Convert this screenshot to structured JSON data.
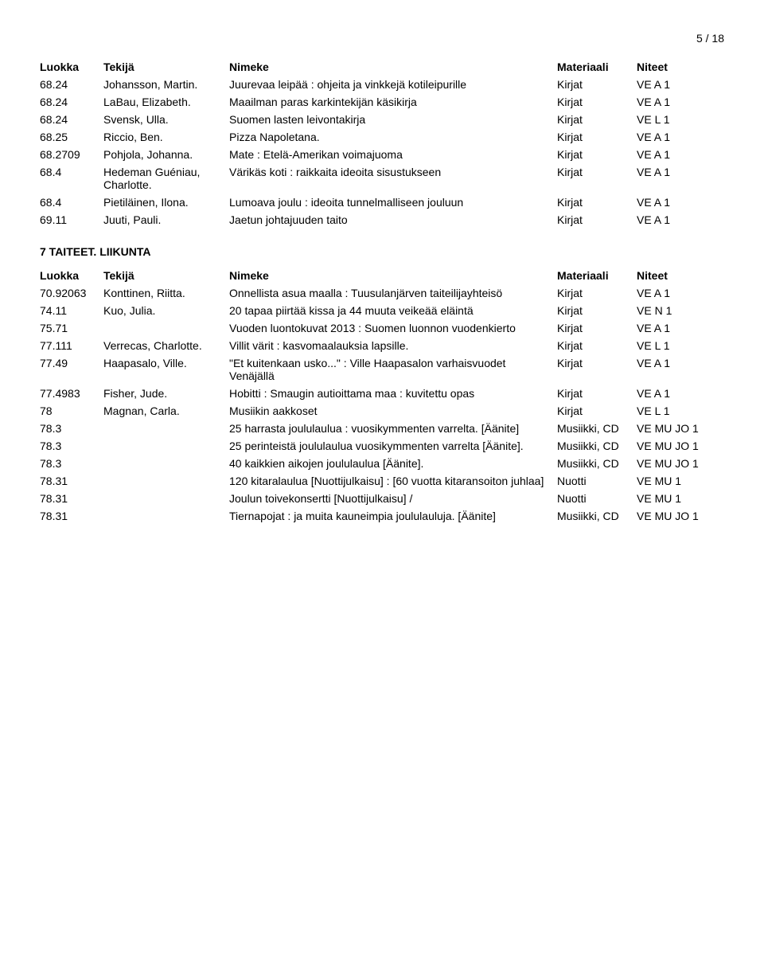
{
  "page_number": "5 / 18",
  "headers": {
    "luokka": "Luokka",
    "tekija": "Tekijä",
    "nimeke": "Nimeke",
    "materiaali": "Materiaali",
    "niteet": "Niteet"
  },
  "section1_rows": [
    {
      "luokka": "68.24",
      "tekija": "Johansson, Martin.",
      "nimeke": "Juurevaa leipää : ohjeita ja vinkkejä kotileipurille",
      "mat": "Kirjat",
      "niteet": "VE A 1"
    },
    {
      "luokka": "68.24",
      "tekija": "LaBau, Elizabeth.",
      "nimeke": "Maailman paras karkintekijän käsikirja",
      "mat": "Kirjat",
      "niteet": "VE A 1"
    },
    {
      "luokka": "68.24",
      "tekija": "Svensk, Ulla.",
      "nimeke": "Suomen lasten leivontakirja",
      "mat": "Kirjat",
      "niteet": "VE L 1"
    },
    {
      "luokka": "68.25",
      "tekija": "Riccio, Ben.",
      "nimeke": "Pizza Napoletana.",
      "mat": "Kirjat",
      "niteet": "VE A 1"
    },
    {
      "luokka": "68.2709",
      "tekija": "Pohjola, Johanna.",
      "nimeke": "Mate : Etelä-Amerikan voimajuoma",
      "mat": "Kirjat",
      "niteet": "VE A 1"
    },
    {
      "luokka": "68.4",
      "tekija": "Hedeman Guéniau, Charlotte.",
      "nimeke": "Värikäs koti : raikkaita ideoita sisustukseen",
      "mat": "Kirjat",
      "niteet": "VE A 1"
    },
    {
      "luokka": "68.4",
      "tekija": "Pietiläinen, Ilona.",
      "nimeke": "Lumoava joulu : ideoita tunnelmalliseen jouluun",
      "mat": "Kirjat",
      "niteet": "VE A 1"
    },
    {
      "luokka": "69.11",
      "tekija": "Juuti, Pauli.",
      "nimeke": "Jaetun johtajuuden taito",
      "mat": "Kirjat",
      "niteet": "VE A 1"
    }
  ],
  "section2_title": "7 TAITEET. LIIKUNTA",
  "section2_rows": [
    {
      "luokka": "70.92063",
      "tekija": "Konttinen, Riitta.",
      "nimeke": "Onnellista asua maalla : Tuusulanjärven taiteilijayhteisö",
      "mat": "Kirjat",
      "niteet": "VE A 1"
    },
    {
      "luokka": "74.11",
      "tekija": "Kuo, Julia.",
      "nimeke": "20 tapaa piirtää kissa ja 44 muuta veikeää eläintä",
      "mat": "Kirjat",
      "niteet": "VE N 1"
    },
    {
      "luokka": "75.71",
      "tekija": "",
      "nimeke": "Vuoden luontokuvat 2013 : Suomen luonnon vuodenkierto",
      "mat": "Kirjat",
      "niteet": "VE A 1"
    },
    {
      "luokka": "77.111",
      "tekija": "Verrecas, Charlotte.",
      "nimeke": "Villit värit : kasvomaalauksia lapsille.",
      "mat": "Kirjat",
      "niteet": "VE L 1"
    },
    {
      "luokka": "77.49",
      "tekija": "Haapasalo, Ville.",
      "nimeke": "\"Et kuitenkaan usko...\" : Ville Haapasalon varhaisvuodet Venäjällä",
      "mat": "Kirjat",
      "niteet": "VE A 1"
    },
    {
      "luokka": "77.4983",
      "tekija": "Fisher, Jude.",
      "nimeke": "Hobitti : Smaugin autioittama maa : kuvitettu opas",
      "mat": "Kirjat",
      "niteet": "VE A 1"
    },
    {
      "luokka": "78",
      "tekija": "Magnan, Carla.",
      "nimeke": "Musiikin aakkoset",
      "mat": "Kirjat",
      "niteet": "VE L 1"
    },
    {
      "luokka": "78.3",
      "tekija": "",
      "nimeke": "25 harrasta joululaulua : vuosikymmenten varrelta. [Äänite]",
      "mat": "Musiikki, CD",
      "niteet": "VE MU JO 1"
    },
    {
      "luokka": "78.3",
      "tekija": "",
      "nimeke": "25 perinteistä joululaulua vuosikymmenten varrelta [Äänite].",
      "mat": "Musiikki, CD",
      "niteet": "VE MU JO 1"
    },
    {
      "luokka": "78.3",
      "tekija": "",
      "nimeke": "40 kaikkien aikojen joululaulua [Äänite].",
      "mat": "Musiikki, CD",
      "niteet": "VE MU JO 1"
    },
    {
      "luokka": "78.31",
      "tekija": "",
      "nimeke": "120 kitaralaulua [Nuottijulkaisu] : [60 vuotta kitaransoiton juhlaa]",
      "mat": "Nuotti",
      "niteet": "VE MU 1"
    },
    {
      "luokka": "78.31",
      "tekija": "",
      "nimeke": "Joulun toivekonsertti [Nuottijulkaisu] /",
      "mat": "Nuotti",
      "niteet": "VE MU 1"
    },
    {
      "luokka": "78.31",
      "tekija": "",
      "nimeke": "Tiernapojat : ja muita kauneimpia joululauluja. [Äänite]",
      "mat": "Musiikki, CD",
      "niteet": "VE MU JO 1"
    }
  ]
}
